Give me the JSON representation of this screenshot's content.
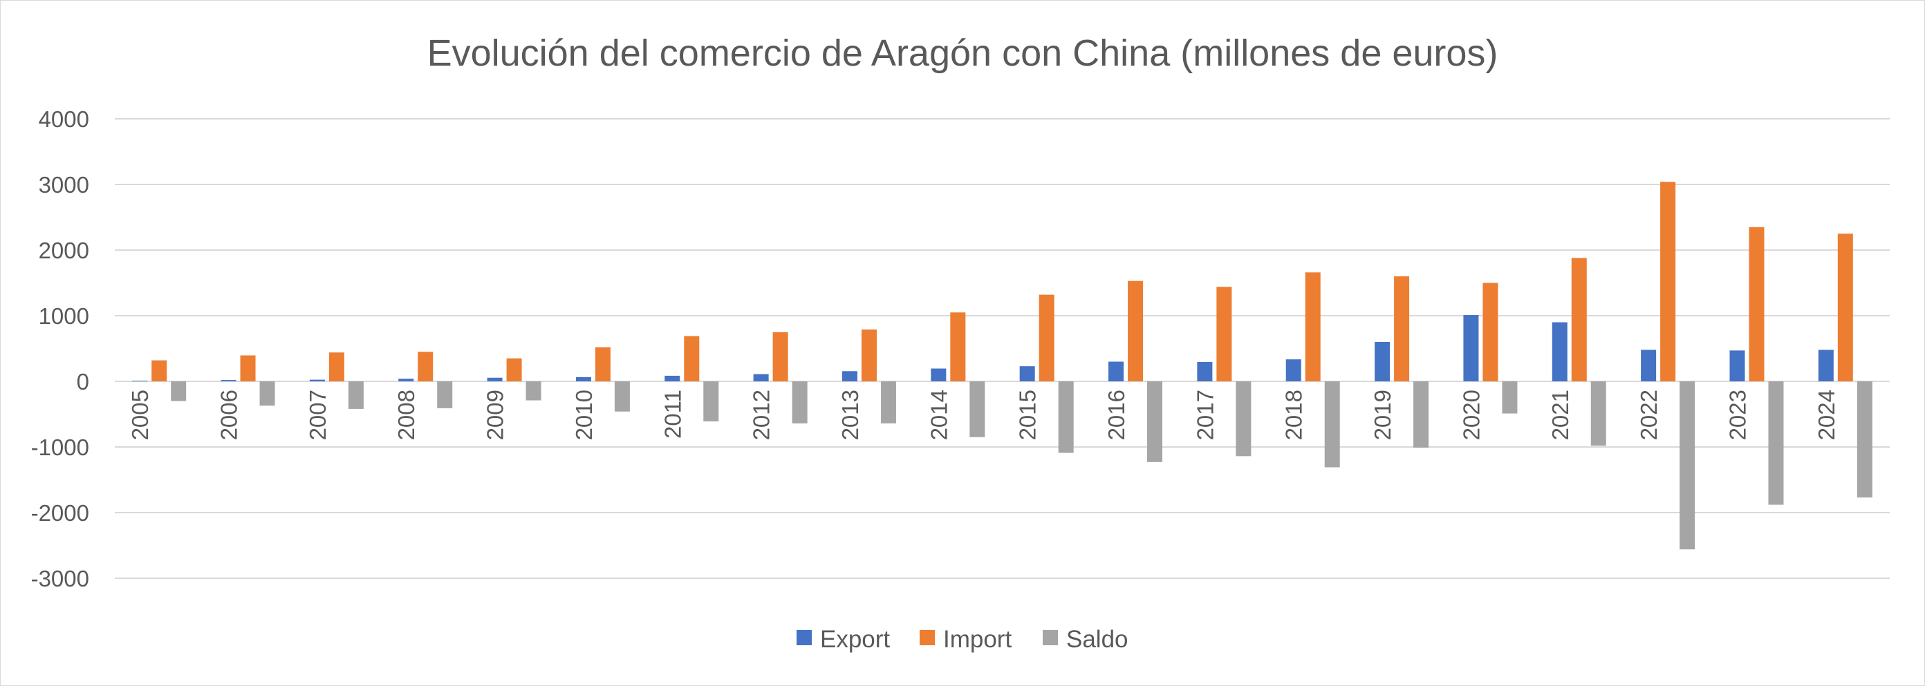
{
  "chart_data": {
    "type": "bar",
    "title": "Evolución del comercio de Aragón con China (millones de euros)",
    "xlabel": "",
    "ylabel": "",
    "ylim": [
      -3000,
      4000
    ],
    "yticks": [
      4000,
      3000,
      2000,
      1000,
      0,
      -1000,
      -2000,
      -3000
    ],
    "grid": true,
    "legend_position": "bottom",
    "categories": [
      "2005",
      "2006",
      "2007",
      "2008",
      "2009",
      "2010",
      "2011",
      "2012",
      "2013",
      "2014",
      "2015",
      "2016",
      "2017",
      "2018",
      "2019",
      "2020",
      "2021",
      "2022",
      "2023",
      "2024"
    ],
    "series": [
      {
        "name": "Export",
        "color": "#4472c4",
        "values": [
          10,
          20,
          25,
          40,
          55,
          65,
          85,
          110,
          155,
          195,
          230,
          300,
          295,
          335,
          600,
          1010,
          900,
          480,
          470,
          480
        ]
      },
      {
        "name": "Import",
        "color": "#ed7d31",
        "values": [
          320,
          395,
          440,
          450,
          350,
          520,
          690,
          750,
          790,
          1050,
          1320,
          1530,
          1440,
          1660,
          1600,
          1500,
          1880,
          3040,
          2350,
          2250
        ]
      },
      {
        "name": "Saldo",
        "color": "#a5a5a5",
        "values": [
          -300,
          -370,
          -420,
          -410,
          -290,
          -460,
          -610,
          -640,
          -640,
          -850,
          -1090,
          -1230,
          -1140,
          -1310,
          -1010,
          -490,
          -980,
          -2560,
          -1880,
          -1770
        ]
      }
    ]
  }
}
